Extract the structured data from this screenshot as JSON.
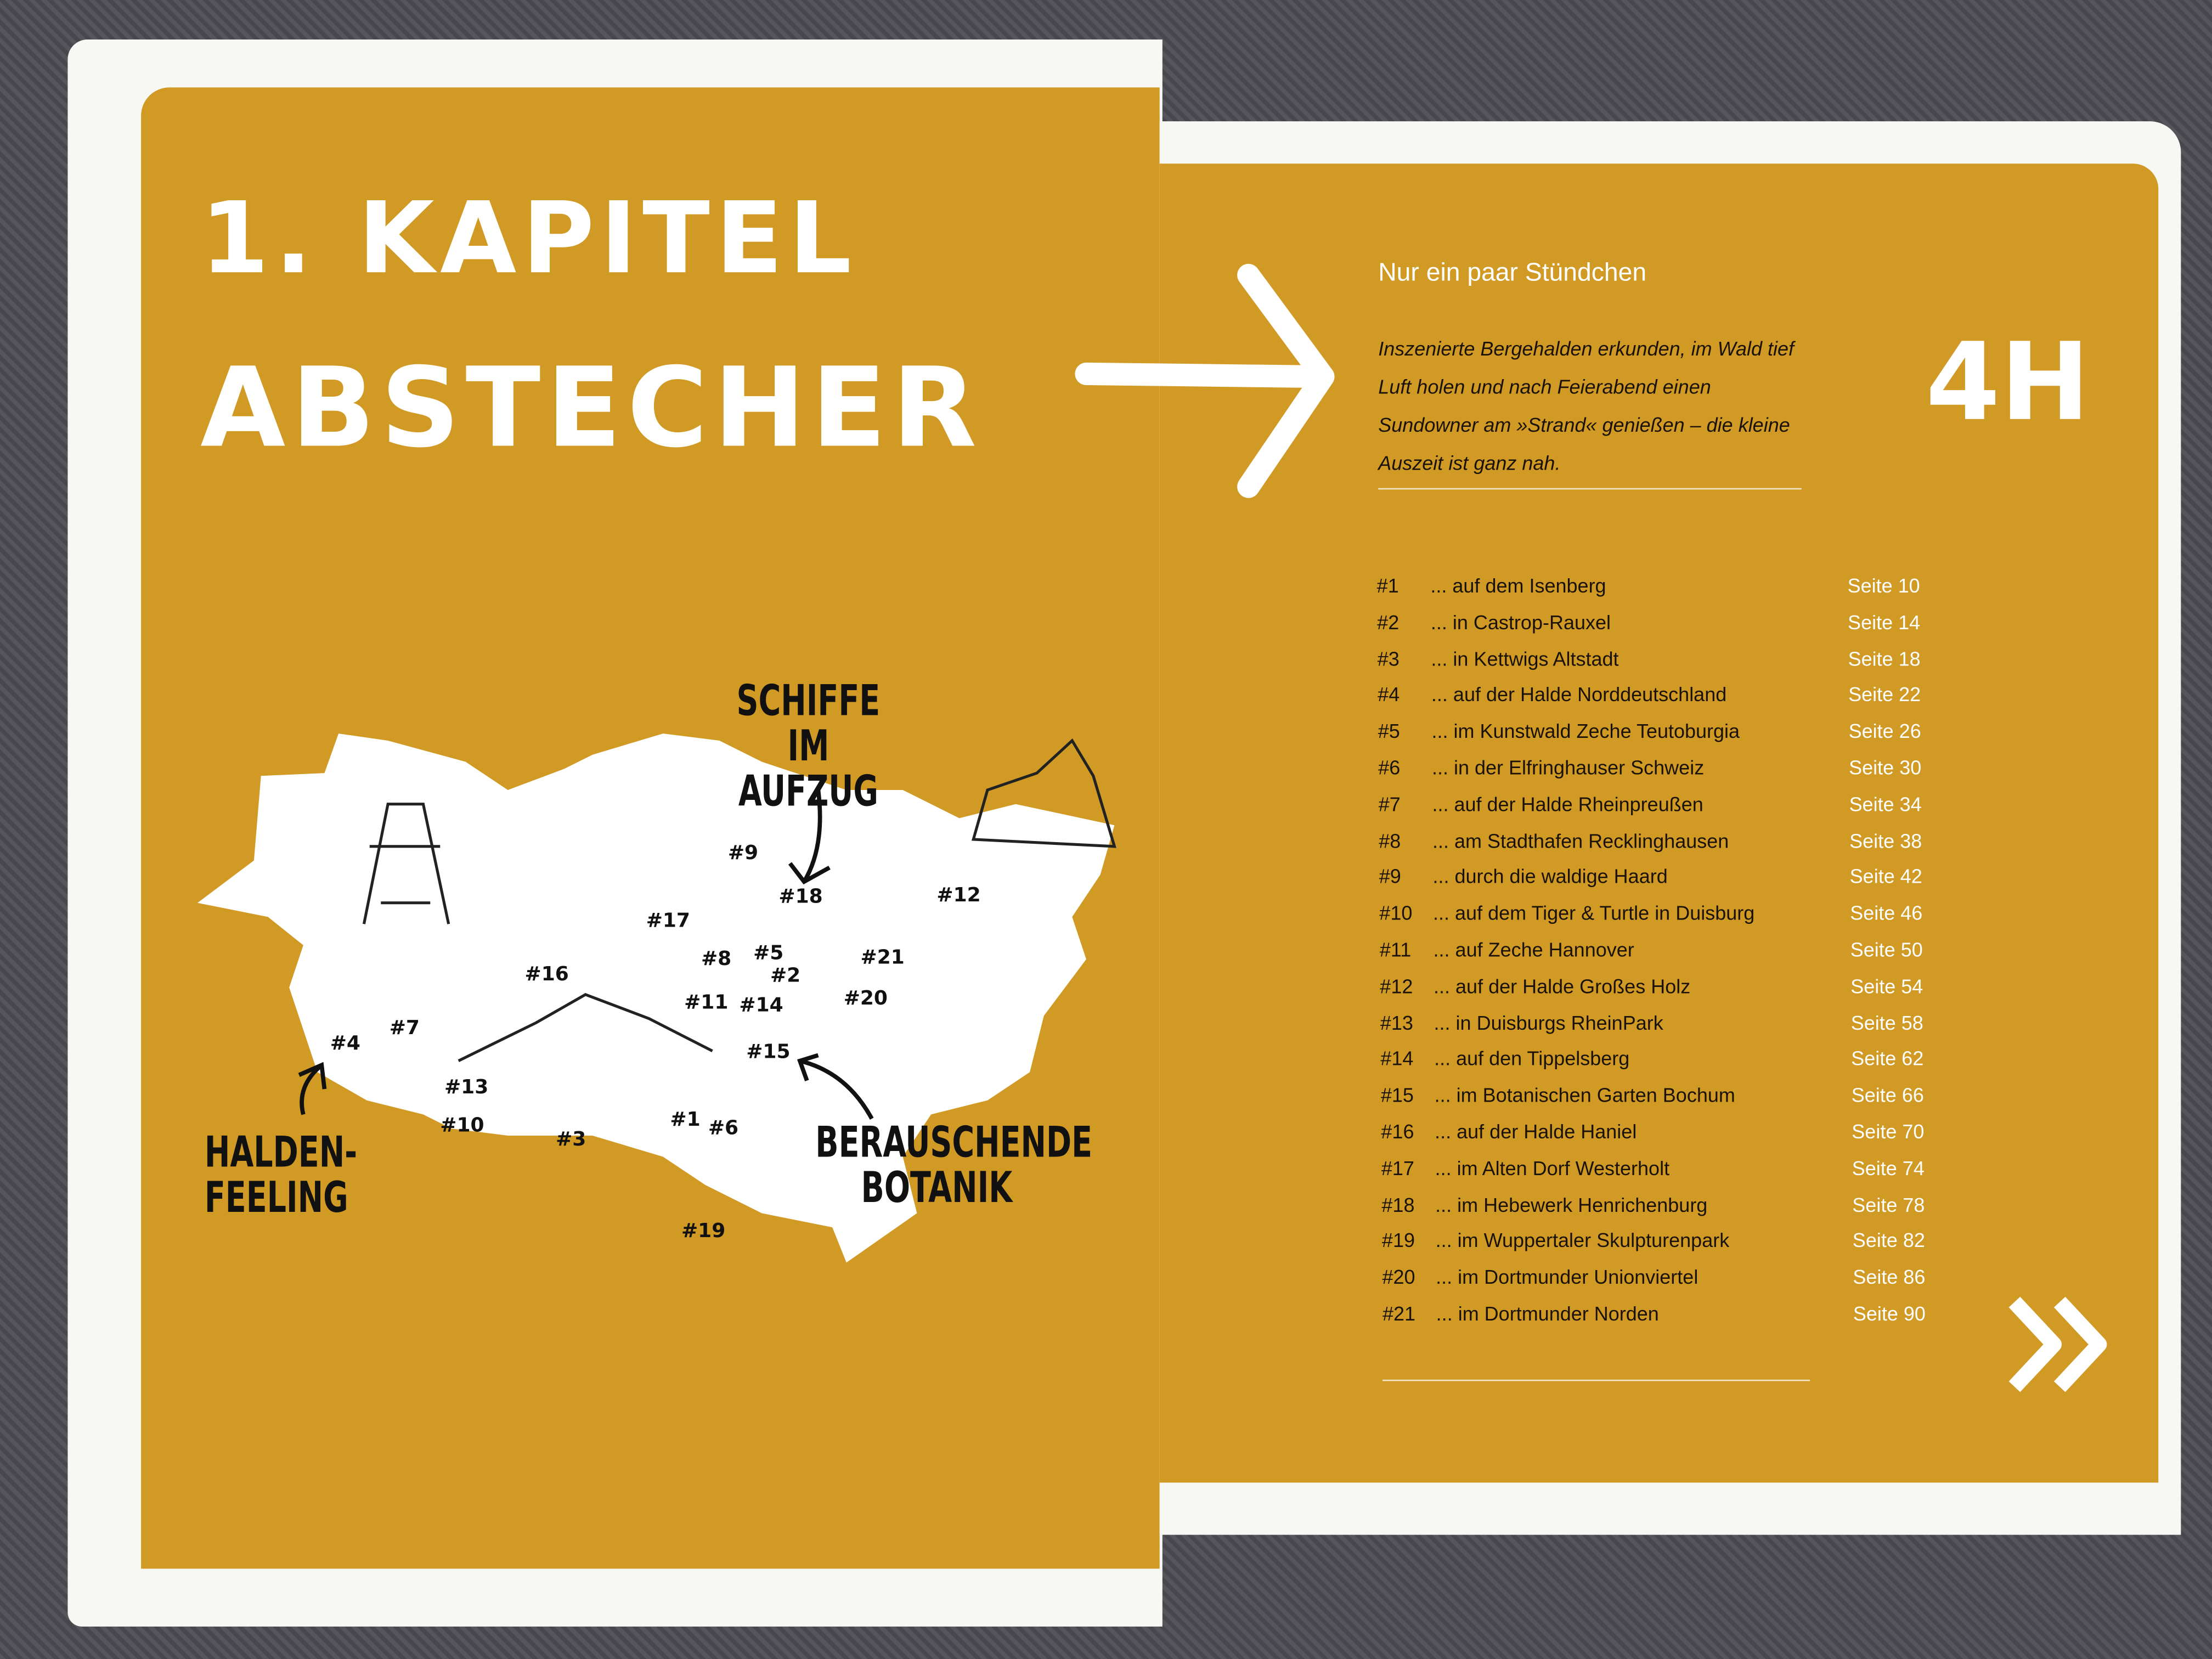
{
  "left_page": {
    "chapter_line1": "1. KAPITEL",
    "chapter_line2": "ABSTECHER",
    "map_callouts": {
      "schiffe": "SCHIFFE IM AUFZUG",
      "halden": "HALDEN-FEELING",
      "botanik": "BERAUSCHENDE BOTANIK"
    },
    "map_markers": [
      "#1",
      "#2",
      "#3",
      "#4",
      "#5",
      "#6",
      "#7",
      "#8",
      "#9",
      "#10",
      "#11",
      "#12",
      "#13",
      "#14",
      "#15",
      "#16",
      "#17",
      "#18",
      "#19",
      "#20",
      "#21"
    ]
  },
  "right_page": {
    "subtitle": "Nur ein paar Stündchen",
    "intro": "Inszenierte Bergehalden erkunden, im Wald tief Luft holen und nach Feierabend einen Sundowner am »Strand« genießen – die kleine Auszeit ist ganz nah.",
    "duration": "4H",
    "arrow_icon": "arrow-right-icon",
    "next_icon": "double-chevron-right-icon",
    "entries": [
      {
        "num": "#1",
        "title": "... auf dem Isenberg",
        "page": "Seite 10"
      },
      {
        "num": "#2",
        "title": "... in Castrop-Rauxel",
        "page": "Seite 14"
      },
      {
        "num": "#3",
        "title": "... in Kettwigs Altstadt",
        "page": "Seite 18"
      },
      {
        "num": "#4",
        "title": "... auf der Halde Norddeutschland",
        "page": "Seite 22"
      },
      {
        "num": "#5",
        "title": "... im Kunstwald Zeche Teutoburgia",
        "page": "Seite 26"
      },
      {
        "num": "#6",
        "title": "... in der Elfringhauser Schweiz",
        "page": "Seite 30"
      },
      {
        "num": "#7",
        "title": "... auf der Halde Rheinpreußen",
        "page": "Seite 34"
      },
      {
        "num": "#8",
        "title": "... am Stadthafen Recklinghausen",
        "page": "Seite 38"
      },
      {
        "num": "#9",
        "title": "... durch die waldige Haard",
        "page": "Seite 42"
      },
      {
        "num": "#10",
        "title": "... auf dem Tiger & Turtle in Duisburg",
        "page": "Seite 46"
      },
      {
        "num": "#11",
        "title": "... auf Zeche Hannover",
        "page": "Seite 50"
      },
      {
        "num": "#12",
        "title": "... auf der Halde Großes Holz",
        "page": "Seite 54"
      },
      {
        "num": "#13",
        "title": "... in Duisburgs RheinPark",
        "page": "Seite 58"
      },
      {
        "num": "#14",
        "title": "... auf den Tippelsberg",
        "page": "Seite 62"
      },
      {
        "num": "#15",
        "title": "... im Botanischen Garten Bochum",
        "page": "Seite 66"
      },
      {
        "num": "#16",
        "title": "... auf der Halde Haniel",
        "page": "Seite 70"
      },
      {
        "num": "#17",
        "title": "... im Alten Dorf Westerholt",
        "page": "Seite 74"
      },
      {
        "num": "#18",
        "title": "... im Hebewerk Henrichenburg",
        "page": "Seite 78"
      },
      {
        "num": "#19",
        "title": "... im Wuppertaler Skulpturenpark",
        "page": "Seite 82"
      },
      {
        "num": "#20",
        "title": "... im Dortmunder Unionviertel",
        "page": "Seite 86"
      },
      {
        "num": "#21",
        "title": "... im Dortmunder Norden",
        "page": "Seite 90"
      }
    ]
  },
  "colors": {
    "page_yellow": "#d09a24",
    "paper": "#f7f7f4",
    "background": "#4b4b52"
  }
}
